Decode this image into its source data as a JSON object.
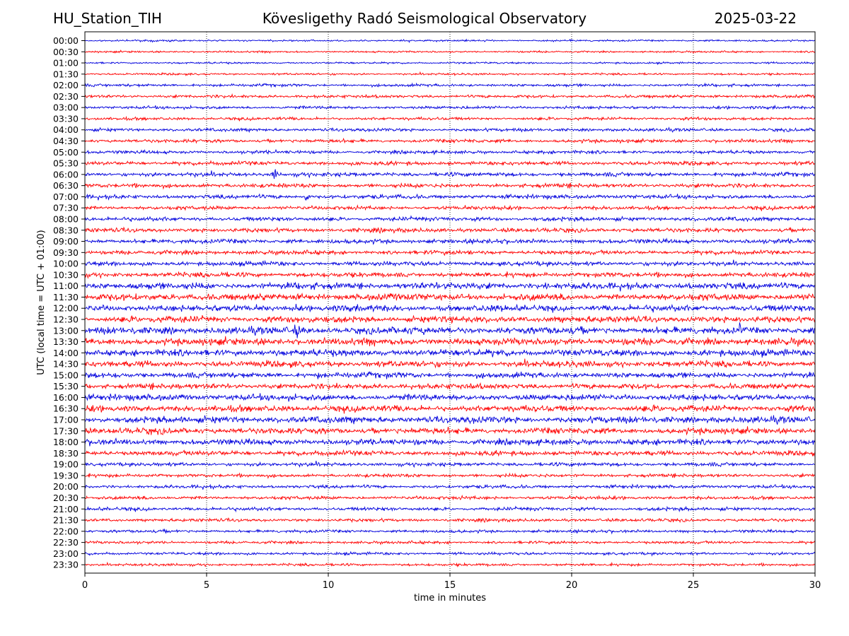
{
  "header": {
    "station": "HU_Station_TIH",
    "observatory": "Kövesligethy Radó Seismological Observatory",
    "date": "2025-03-22"
  },
  "chart_data": {
    "type": "line",
    "title": "Kövesligethy Radó Seismological Observatory",
    "xlabel": "time in minutes",
    "ylabel": "UTC (local time = UTC + 01:00)",
    "xlim": [
      0,
      30
    ],
    "x_ticks": [
      0,
      5,
      10,
      15,
      20,
      25,
      30
    ],
    "grid": "vertical dotted lines at x ticks",
    "colors": {
      "even_rows": "#0000dd",
      "odd_rows": "#ff0000",
      "axis": "#000000"
    },
    "rows": [
      {
        "label": "00:00",
        "amp": 1.0
      },
      {
        "label": "00:30",
        "amp": 1.0
      },
      {
        "label": "01:00",
        "amp": 1.0
      },
      {
        "label": "01:30",
        "amp": 1.1
      },
      {
        "label": "02:00",
        "amp": 1.5
      },
      {
        "label": "02:30",
        "amp": 1.6
      },
      {
        "label": "03:00",
        "amp": 1.6
      },
      {
        "label": "03:30",
        "amp": 1.6
      },
      {
        "label": "04:00",
        "amp": 1.7
      },
      {
        "label": "04:30",
        "amp": 1.9
      },
      {
        "label": "05:00",
        "amp": 1.8
      },
      {
        "label": "05:30",
        "amp": 2.1
      },
      {
        "label": "06:00",
        "amp": 2.2,
        "events": [
          {
            "t": 7.8,
            "a": 10
          }
        ]
      },
      {
        "label": "06:30",
        "amp": 2.2
      },
      {
        "label": "07:00",
        "amp": 2.2,
        "events": [
          {
            "t": 9.1,
            "a": 8
          },
          {
            "t": 24.6,
            "a": 4
          }
        ]
      },
      {
        "label": "07:30",
        "amp": 2.0
      },
      {
        "label": "08:00",
        "amp": 2.2
      },
      {
        "label": "08:30",
        "amp": 2.3
      },
      {
        "label": "09:00",
        "amp": 2.4
      },
      {
        "label": "09:30",
        "amp": 2.2,
        "events": [
          {
            "t": 15.8,
            "a": 6
          }
        ]
      },
      {
        "label": "10:00",
        "amp": 2.4
      },
      {
        "label": "10:30",
        "amp": 2.6
      },
      {
        "label": "11:00",
        "amp": 3.5,
        "events": [
          {
            "t": 15.5,
            "a": 6
          },
          {
            "t": 19.0,
            "a": 7
          }
        ]
      },
      {
        "label": "11:30",
        "amp": 3.6
      },
      {
        "label": "12:00",
        "amp": 3.4,
        "events": [
          {
            "t": 8.7,
            "a": 7
          }
        ]
      },
      {
        "label": "12:30",
        "amp": 3.4,
        "events": [
          {
            "t": 8.7,
            "a": 9
          }
        ]
      },
      {
        "label": "13:00",
        "amp": 3.8,
        "events": [
          {
            "t": 8.7,
            "a": 14
          },
          {
            "t": 26.9,
            "a": 12
          }
        ]
      },
      {
        "label": "13:30",
        "amp": 3.8
      },
      {
        "label": "14:00",
        "amp": 3.6
      },
      {
        "label": "14:30",
        "amp": 3.3
      },
      {
        "label": "15:00",
        "amp": 3.0,
        "events": [
          {
            "t": 9.6,
            "a": 6
          }
        ]
      },
      {
        "label": "15:30",
        "amp": 2.9
      },
      {
        "label": "16:00",
        "amp": 3.3
      },
      {
        "label": "16:30",
        "amp": 3.4
      },
      {
        "label": "17:00",
        "amp": 3.6
      },
      {
        "label": "17:30",
        "amp": 3.3
      },
      {
        "label": "18:00",
        "amp": 3.2,
        "events": [
          {
            "t": 9.8,
            "a": 6
          }
        ]
      },
      {
        "label": "18:30",
        "amp": 2.6
      },
      {
        "label": "19:00",
        "amp": 2.0
      },
      {
        "label": "19:30",
        "amp": 1.8
      },
      {
        "label": "20:00",
        "amp": 1.8
      },
      {
        "label": "20:30",
        "amp": 1.8
      },
      {
        "label": "21:00",
        "amp": 1.9
      },
      {
        "label": "21:30",
        "amp": 1.7
      },
      {
        "label": "22:00",
        "amp": 1.6
      },
      {
        "label": "22:30",
        "amp": 1.5
      },
      {
        "label": "23:00",
        "amp": 1.5
      },
      {
        "label": "23:30",
        "amp": 1.4
      }
    ]
  }
}
